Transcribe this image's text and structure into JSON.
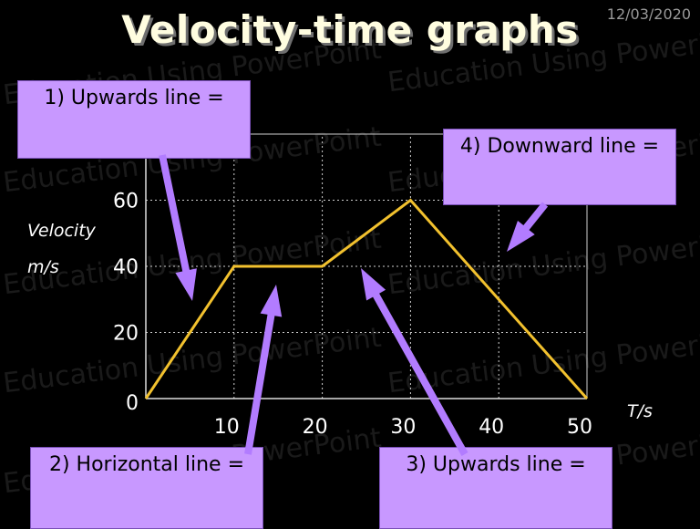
{
  "slide": {
    "title": "Velocity-time graphs",
    "date": "12/03/2020",
    "watermark": "Education Using PowerPoint"
  },
  "boxes": {
    "box1": "1) Upwards line =",
    "box2": "2) Horizontal line =",
    "box3": "3) Upwards line =",
    "box4": "4) Downward line ="
  },
  "colors": {
    "line": "#f2c12e",
    "box_fill": "#c898ff",
    "arrow": "#b27cff",
    "grid": "#cfcfcf"
  },
  "chart_data": {
    "type": "line",
    "title": "",
    "xlabel": "T/s",
    "ylabel_line1": "Velocity",
    "ylabel_line2": "m/s",
    "xlim": [
      0,
      50
    ],
    "ylim": [
      0,
      80
    ],
    "x_ticks": [
      10,
      20,
      30,
      40,
      50
    ],
    "y_ticks": [
      0,
      20,
      40,
      60
    ],
    "grid": true,
    "legend": "none",
    "series": [
      {
        "x": [
          0,
          10,
          20,
          30,
          50
        ],
        "y": [
          0,
          40,
          40,
          60,
          0
        ]
      }
    ]
  }
}
